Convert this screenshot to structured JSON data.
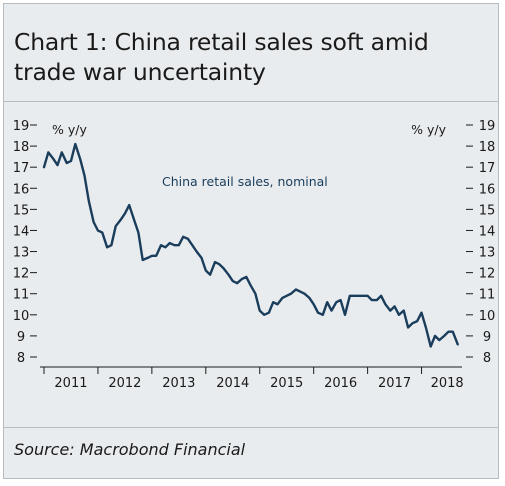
{
  "title": "Chart 1: China retail sales soft amid\ntrade war uncertainty",
  "source": "Source: Macrobond Financial",
  "chart_data": {
    "type": "line",
    "ylabel_left": "% y/y",
    "ylabel_right": "% y/y",
    "ylim": [
      8,
      19
    ],
    "yticks": [
      8,
      9,
      10,
      11,
      12,
      13,
      14,
      15,
      16,
      17,
      18,
      19
    ],
    "xlim": [
      2011.0,
      2018.75
    ],
    "xtick_labels": [
      "2011",
      "2012",
      "2013",
      "2014",
      "2015",
      "2016",
      "2017",
      "2018"
    ],
    "grid": false,
    "series": [
      {
        "name": "China retail sales, nominal",
        "color": "#1a3d5c",
        "x": [
          2011.0,
          2011.08,
          2011.17,
          2011.25,
          2011.33,
          2011.42,
          2011.5,
          2011.58,
          2011.67,
          2011.75,
          2011.83,
          2011.92,
          2012.0,
          2012.08,
          2012.17,
          2012.25,
          2012.33,
          2012.42,
          2012.5,
          2012.58,
          2012.67,
          2012.75,
          2012.83,
          2012.92,
          2013.0,
          2013.08,
          2013.17,
          2013.25,
          2013.33,
          2013.42,
          2013.5,
          2013.58,
          2013.67,
          2013.75,
          2013.83,
          2013.92,
          2014.0,
          2014.08,
          2014.17,
          2014.25,
          2014.33,
          2014.42,
          2014.5,
          2014.58,
          2014.67,
          2014.75,
          2014.83,
          2014.92,
          2015.0,
          2015.08,
          2015.17,
          2015.25,
          2015.33,
          2015.42,
          2015.5,
          2015.58,
          2015.67,
          2015.75,
          2015.83,
          2015.92,
          2016.0,
          2016.08,
          2016.17,
          2016.25,
          2016.33,
          2016.42,
          2016.5,
          2016.58,
          2016.67,
          2016.75,
          2016.83,
          2016.92,
          2017.0,
          2017.08,
          2017.17,
          2017.25,
          2017.33,
          2017.42,
          2017.5,
          2017.58,
          2017.67,
          2017.75,
          2017.83,
          2017.92,
          2018.0,
          2018.08,
          2018.17,
          2018.25,
          2018.33,
          2018.42,
          2018.5,
          2018.58,
          2018.67
        ],
        "y": [
          17.0,
          17.7,
          17.4,
          17.1,
          17.7,
          17.2,
          17.3,
          18.1,
          17.4,
          16.6,
          15.4,
          14.4,
          14.0,
          13.9,
          13.2,
          13.3,
          14.2,
          14.5,
          14.8,
          15.2,
          14.5,
          13.9,
          12.6,
          12.7,
          12.8,
          12.8,
          13.3,
          13.2,
          13.4,
          13.3,
          13.3,
          13.7,
          13.6,
          13.3,
          13.0,
          12.7,
          12.1,
          11.9,
          12.5,
          12.4,
          12.2,
          11.9,
          11.6,
          11.5,
          11.7,
          11.8,
          11.4,
          11.0,
          10.2,
          10.0,
          10.1,
          10.6,
          10.5,
          10.8,
          10.9,
          11.0,
          11.2,
          11.1,
          11.0,
          10.8,
          10.5,
          10.1,
          10.0,
          10.6,
          10.2,
          10.6,
          10.7,
          10.0,
          10.9,
          10.9,
          10.9,
          10.9,
          10.9,
          10.7,
          10.7,
          10.9,
          10.5,
          10.2,
          10.4,
          10.0,
          10.2,
          9.4,
          9.6,
          9.7,
          10.1,
          9.4,
          8.5,
          9.0,
          8.8,
          9.0,
          9.2,
          9.2,
          8.6
        ]
      }
    ],
    "annotation": "China retail sales, nominal"
  }
}
